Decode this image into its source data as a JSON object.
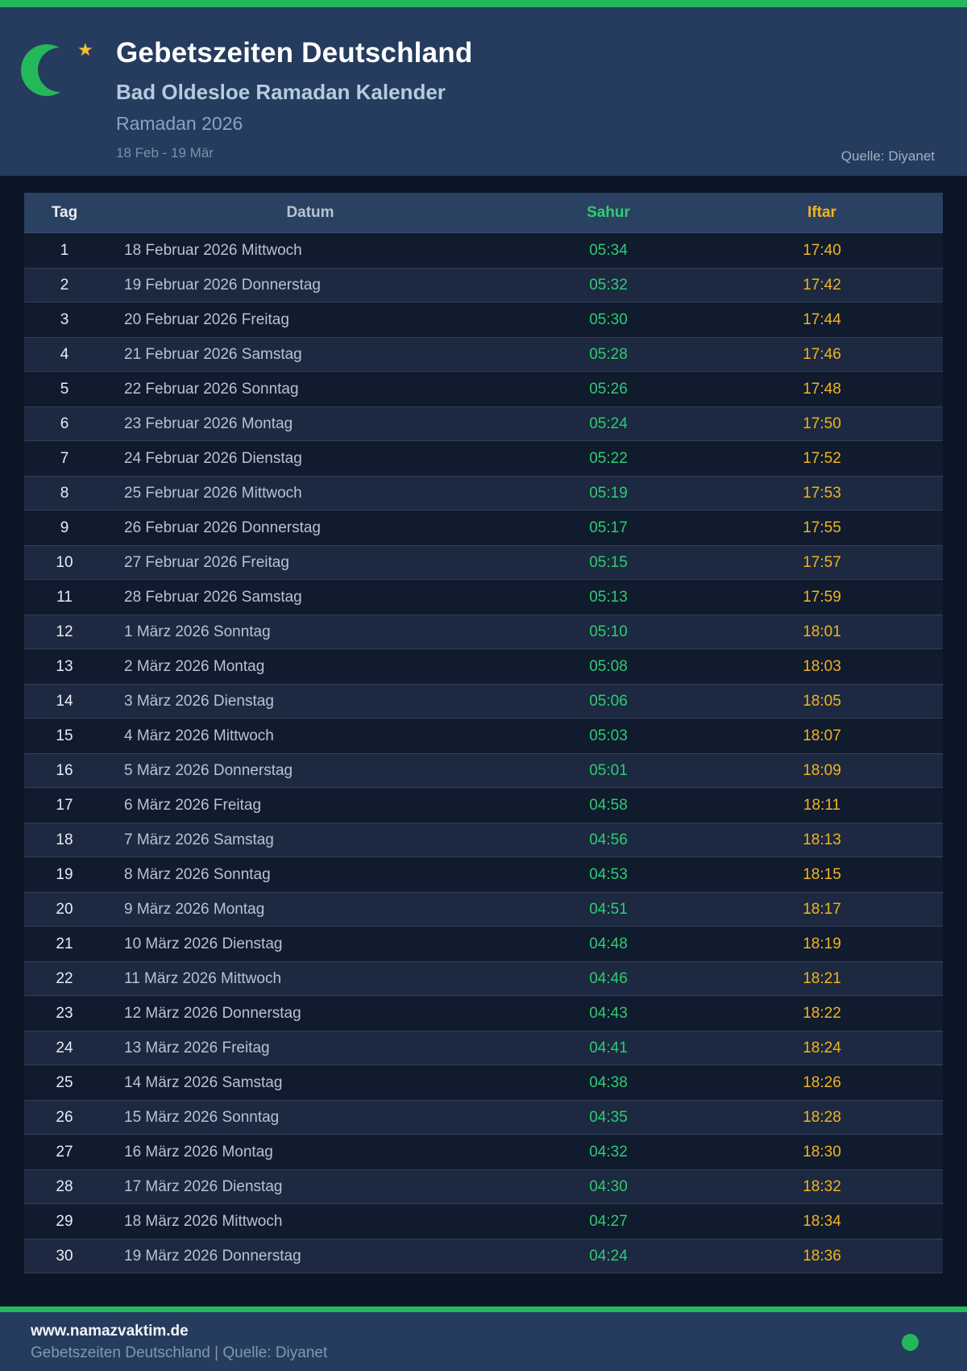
{
  "colors": {
    "accent_green": "#25b85a",
    "text_green": "#2ecc71",
    "iftar_gold": "#f0b421",
    "star_gold": "#f5c033",
    "panel_navy": "#253c5e",
    "page_bg": "#0c1526",
    "row_alt_bg": "#1d2940"
  },
  "header": {
    "title": "Gebetszeiten Deutschland",
    "subtitle": "Bad Oldesloe Ramadan Kalender",
    "season": "Ramadan 2026",
    "date_range": "18 Feb - 19 Mär",
    "source": "Quelle: Diyanet",
    "moon_icon": "crescent-moon",
    "star_icon": "star",
    "star_glyph": "★"
  },
  "table": {
    "columns": [
      "Tag",
      "Datum",
      "Sahur",
      "Iftar"
    ],
    "rows": [
      {
        "day": "1",
        "date": "18 Februar 2026 Mittwoch",
        "sahur": "05:34",
        "iftar": "17:40"
      },
      {
        "day": "2",
        "date": "19 Februar 2026 Donnerstag",
        "sahur": "05:32",
        "iftar": "17:42"
      },
      {
        "day": "3",
        "date": "20 Februar 2026 Freitag",
        "sahur": "05:30",
        "iftar": "17:44"
      },
      {
        "day": "4",
        "date": "21 Februar 2026 Samstag",
        "sahur": "05:28",
        "iftar": "17:46"
      },
      {
        "day": "5",
        "date": "22 Februar 2026 Sonntag",
        "sahur": "05:26",
        "iftar": "17:48"
      },
      {
        "day": "6",
        "date": "23 Februar 2026 Montag",
        "sahur": "05:24",
        "iftar": "17:50"
      },
      {
        "day": "7",
        "date": "24 Februar 2026 Dienstag",
        "sahur": "05:22",
        "iftar": "17:52"
      },
      {
        "day": "8",
        "date": "25 Februar 2026 Mittwoch",
        "sahur": "05:19",
        "iftar": "17:53"
      },
      {
        "day": "9",
        "date": "26 Februar 2026 Donnerstag",
        "sahur": "05:17",
        "iftar": "17:55"
      },
      {
        "day": "10",
        "date": "27 Februar 2026 Freitag",
        "sahur": "05:15",
        "iftar": "17:57"
      },
      {
        "day": "11",
        "date": "28 Februar 2026 Samstag",
        "sahur": "05:13",
        "iftar": "17:59"
      },
      {
        "day": "12",
        "date": "1 März 2026 Sonntag",
        "sahur": "05:10",
        "iftar": "18:01"
      },
      {
        "day": "13",
        "date": "2 März 2026 Montag",
        "sahur": "05:08",
        "iftar": "18:03"
      },
      {
        "day": "14",
        "date": "3 März 2026 Dienstag",
        "sahur": "05:06",
        "iftar": "18:05"
      },
      {
        "day": "15",
        "date": "4 März 2026 Mittwoch",
        "sahur": "05:03",
        "iftar": "18:07"
      },
      {
        "day": "16",
        "date": "5 März 2026 Donnerstag",
        "sahur": "05:01",
        "iftar": "18:09"
      },
      {
        "day": "17",
        "date": "6 März 2026 Freitag",
        "sahur": "04:58",
        "iftar": "18:11"
      },
      {
        "day": "18",
        "date": "7 März 2026 Samstag",
        "sahur": "04:56",
        "iftar": "18:13"
      },
      {
        "day": "19",
        "date": "8 März 2026 Sonntag",
        "sahur": "04:53",
        "iftar": "18:15"
      },
      {
        "day": "20",
        "date": "9 März 2026 Montag",
        "sahur": "04:51",
        "iftar": "18:17"
      },
      {
        "day": "21",
        "date": "10 März 2026 Dienstag",
        "sahur": "04:48",
        "iftar": "18:19"
      },
      {
        "day": "22",
        "date": "11 März 2026 Mittwoch",
        "sahur": "04:46",
        "iftar": "18:21"
      },
      {
        "day": "23",
        "date": "12 März 2026 Donnerstag",
        "sahur": "04:43",
        "iftar": "18:22"
      },
      {
        "day": "24",
        "date": "13 März 2026 Freitag",
        "sahur": "04:41",
        "iftar": "18:24"
      },
      {
        "day": "25",
        "date": "14 März 2026 Samstag",
        "sahur": "04:38",
        "iftar": "18:26"
      },
      {
        "day": "26",
        "date": "15 März 2026 Sonntag",
        "sahur": "04:35",
        "iftar": "18:28"
      },
      {
        "day": "27",
        "date": "16 März 2026 Montag",
        "sahur": "04:32",
        "iftar": "18:30"
      },
      {
        "day": "28",
        "date": "17 März 2026 Dienstag",
        "sahur": "04:30",
        "iftar": "18:32"
      },
      {
        "day": "29",
        "date": "18 März 2026 Mittwoch",
        "sahur": "04:27",
        "iftar": "18:34"
      },
      {
        "day": "30",
        "date": "19 März 2026 Donnerstag",
        "sahur": "04:24",
        "iftar": "18:36"
      }
    ]
  },
  "footer": {
    "website": "www.namazvaktim.de",
    "tagline": "Gebetszeiten Deutschland | Quelle: Diyanet"
  }
}
